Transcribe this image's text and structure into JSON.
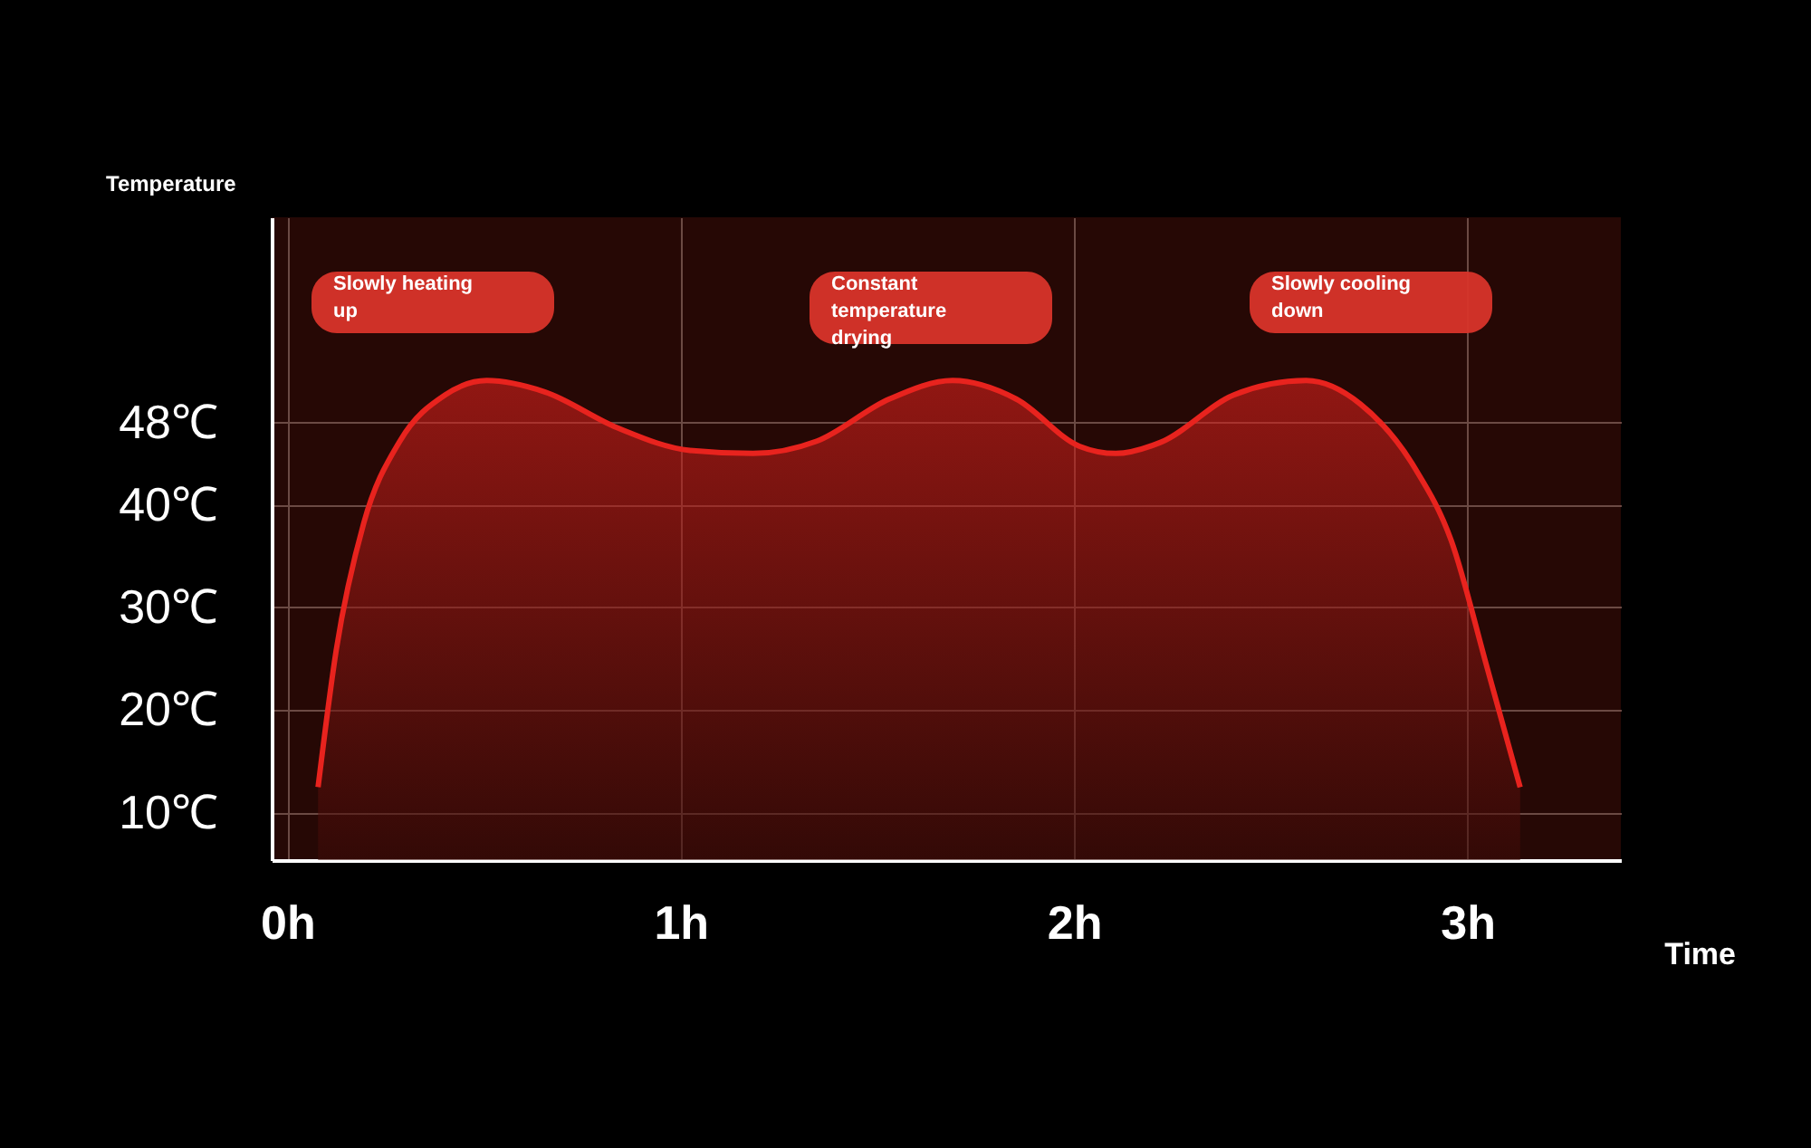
{
  "chart_data": {
    "type": "area",
    "xlabel": "Time",
    "ylabel": "Temperature",
    "x": [
      0.078,
      0.124,
      0.194,
      0.286,
      0.401,
      0.507,
      0.654,
      0.839,
      1.023,
      1.184,
      1.346,
      1.53,
      1.691,
      1.853,
      2.014,
      2.106,
      2.221,
      2.406,
      2.59,
      2.728,
      2.866,
      2.959,
      3.051,
      3.134
    ],
    "series": [
      {
        "color": "#e8231e",
        "values": [
          12.5,
          25.8,
          38.2,
          46.2,
          50.7,
          52.1,
          51.0,
          47.5,
          45.3,
          45.0,
          46.2,
          50.3,
          52.1,
          50.3,
          45.7,
          45.0,
          46.1,
          50.7,
          52.1,
          49.8,
          43.6,
          36.5,
          24.0,
          12.5
        ]
      }
    ],
    "xlim": [
      -0.04,
      3.39
    ],
    "ylim": [
      5.4,
      68
    ],
    "xticks": [
      {
        "value": 0,
        "label": "0h"
      },
      {
        "value": 1,
        "label": "1h"
      },
      {
        "value": 2,
        "label": "2h"
      },
      {
        "value": 3,
        "label": "3h"
      }
    ],
    "yticks": [
      {
        "value": 10,
        "label": "10℃"
      },
      {
        "value": 20,
        "label": "20℃"
      },
      {
        "value": 30,
        "label": "30℃"
      },
      {
        "value": 40,
        "label": "40℃"
      },
      {
        "value": 48,
        "label": "48℃"
      }
    ],
    "grid": true,
    "annotations": [
      "Slowly heating up",
      "Constant temperature drying",
      "Slowly cooling down"
    ]
  }
}
